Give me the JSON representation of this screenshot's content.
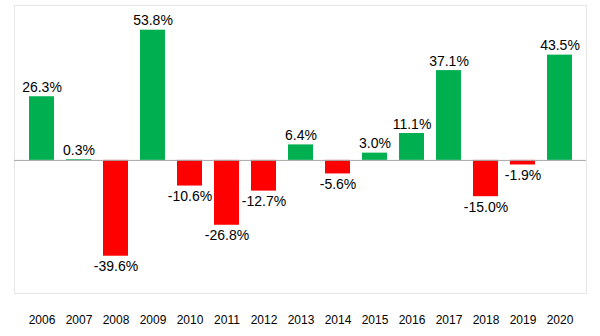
{
  "chart_data": {
    "type": "bar",
    "categories": [
      "2006",
      "2007",
      "2008",
      "2009",
      "2010",
      "2011",
      "2012",
      "2013",
      "2014",
      "2015",
      "2016",
      "2017",
      "2018",
      "2019",
      "2020"
    ],
    "values": [
      26.3,
      0.3,
      -39.6,
      53.8,
      -10.6,
      -26.8,
      -12.7,
      6.4,
      -5.6,
      3.0,
      11.1,
      37.1,
      -15.0,
      -1.9,
      43.5
    ],
    "value_labels": [
      "26.3%",
      "0.3%",
      "-39.6%",
      "53.8%",
      "-10.6%",
      "-26.8%",
      "-12.7%",
      "6.4%",
      "-5.6%",
      "3.0%",
      "11.1%",
      "37.1%",
      "-15.0%",
      "-1.9%",
      "43.5%"
    ],
    "colors": [
      "#00b050",
      "#00b050",
      "#ff0000",
      "#00b050",
      "#ff0000",
      "#ff0000",
      "#ff0000",
      "#00b050",
      "#ff0000",
      "#00b050",
      "#00b050",
      "#00b050",
      "#ff0000",
      "#ff0000",
      "#00b050"
    ],
    "ylim": [
      -55,
      64
    ],
    "data_labels": true,
    "tick_labels": "x",
    "grid": false
  }
}
